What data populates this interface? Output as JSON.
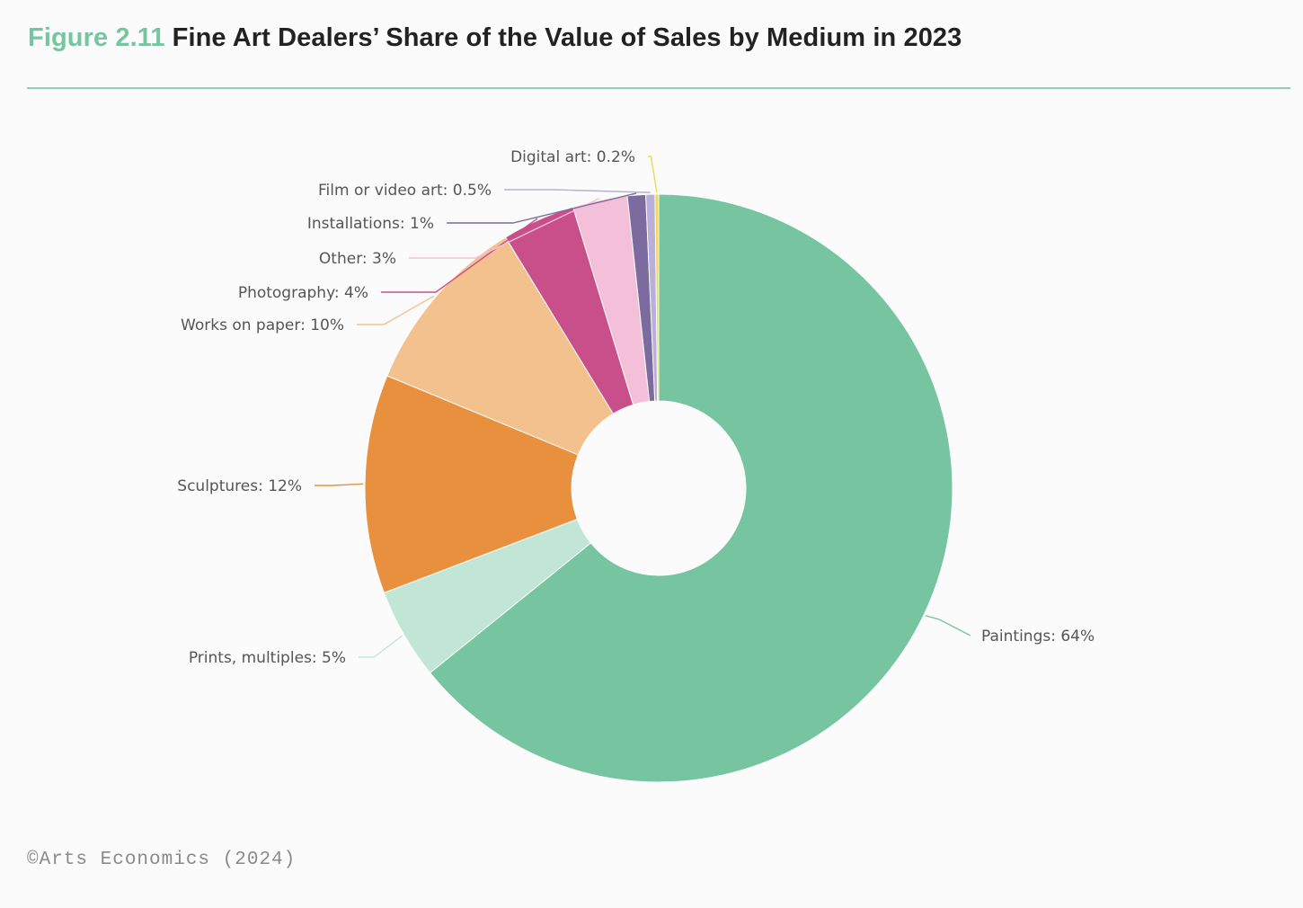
{
  "header": {
    "figure_number": "Figure 2.11",
    "title": "Fine Art Dealers’ Share of the Value of Sales by Medium in 2023"
  },
  "chart_data": {
    "type": "pie",
    "variant": "donut",
    "title": "Fine Art Dealers’ Share of the Value of Sales by Medium in 2023",
    "slices": [
      {
        "label": "Paintings",
        "value": 64,
        "display": "Paintings: 64%",
        "color": "#76c5a0"
      },
      {
        "label": "Prints, multiples",
        "value": 5,
        "display": "Prints, multiples: 5%",
        "color": "#c2e6d6"
      },
      {
        "label": "Sculptures",
        "value": 12,
        "display": "Sculptures: 12%",
        "color": "#e9903e"
      },
      {
        "label": "Works on paper",
        "value": 10,
        "display": "Works on paper: 10%",
        "color": "#f2c18e"
      },
      {
        "label": "Photography",
        "value": 4,
        "display": "Photography: 4%",
        "color": "#c84f89"
      },
      {
        "label": "Other",
        "value": 3,
        "display": "Other: 3%",
        "color": "#f4bfd8"
      },
      {
        "label": "Installations",
        "value": 1,
        "display": "Installations: 1%",
        "color": "#7b6b9e"
      },
      {
        "label": "Film or video art",
        "value": 0.5,
        "display": "Film or video art: 0.5%",
        "color": "#b8b0d6"
      },
      {
        "label": "Digital art",
        "value": 0.2,
        "display": "Digital art: 0.2%",
        "color": "#f0d850"
      }
    ]
  },
  "footer": {
    "source": "©Arts Economics (2024)"
  }
}
